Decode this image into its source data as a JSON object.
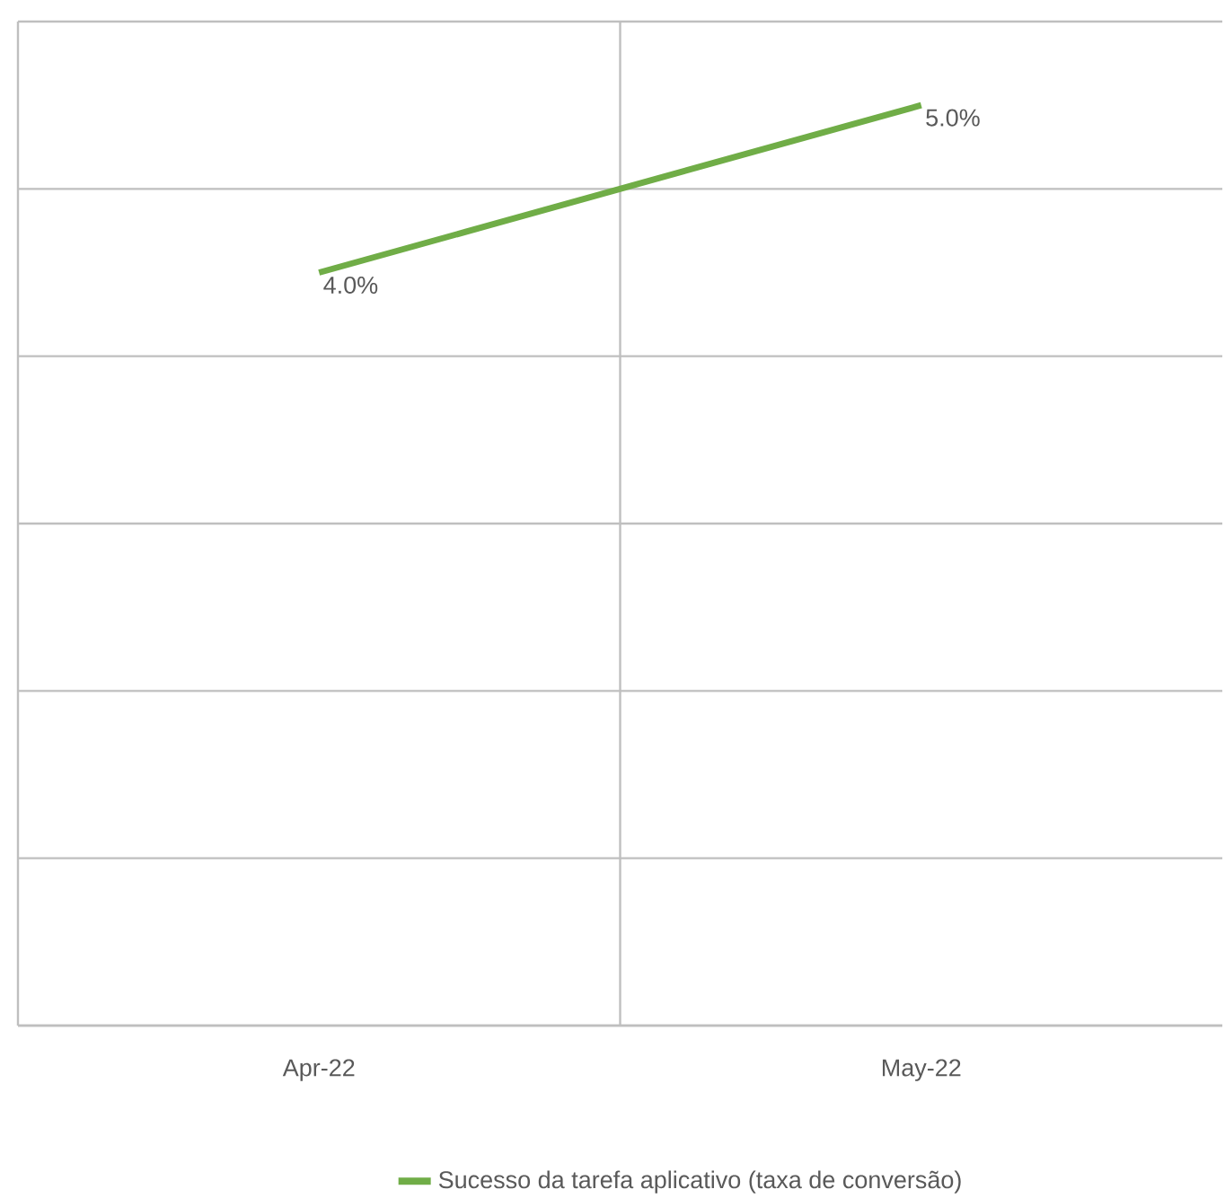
{
  "chart_data": {
    "type": "line",
    "categories": [
      "Apr-22",
      "May-22"
    ],
    "series": [
      {
        "name": "Sucesso da tarefa aplicativo (taxa de conversão)",
        "color": "#70ad47",
        "values": [
          4.0,
          5.0
        ],
        "value_labels": [
          "4.0%",
          "5.0%"
        ]
      }
    ],
    "ylim": [
      -0.5,
      5.5
    ],
    "yticks": [
      {
        "value": -0.5,
        "label": null
      },
      {
        "value": 0.5,
        "label": null
      },
      {
        "value": 1.5,
        "label": null
      },
      {
        "value": 2.5,
        "label": null
      },
      {
        "value": 3.5,
        "label": null
      },
      {
        "value": 4.5,
        "label": null
      },
      {
        "value": 5.5,
        "label": null
      }
    ],
    "tick_labels": "x",
    "grid": true,
    "legend": "bottom",
    "marker": "none",
    "line_style": "solid"
  }
}
